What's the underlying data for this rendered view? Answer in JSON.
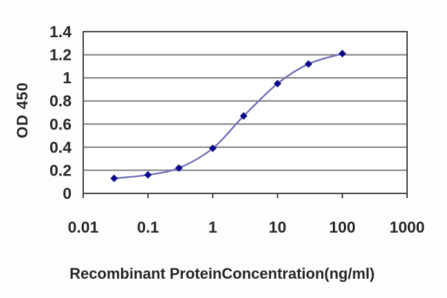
{
  "chart_data": {
    "type": "line",
    "title": "",
    "xlabel": "Recombinant ProteinConcentration(ng/ml)",
    "ylabel": "OD 450",
    "x_scale": "log",
    "xlim": [
      0.01,
      1000
    ],
    "ylim": [
      0,
      1.4
    ],
    "x_ticks": [
      0.01,
      0.1,
      1,
      10,
      100,
      1000
    ],
    "x_tick_labels": [
      "0.01",
      "0.1",
      "1",
      "10",
      "100",
      "1000"
    ],
    "y_ticks": [
      0,
      0.2,
      0.4,
      0.6,
      0.8,
      1,
      1.2,
      1.4
    ],
    "y_tick_labels": [
      "0",
      "0.2",
      "0.4",
      "0.6",
      "0.8",
      "1",
      "1.2",
      "1.4"
    ],
    "grid": "horizontal",
    "legend": "none",
    "series": [
      {
        "name": "OD 450",
        "marker": "diamond",
        "x": [
          0.03,
          0.1,
          0.3,
          1,
          3,
          10,
          30,
          100
        ],
        "y": [
          0.13,
          0.16,
          0.22,
          0.39,
          0.67,
          0.95,
          1.12,
          1.21
        ]
      }
    ],
    "colors": {
      "line": "#6e6eb8",
      "marker": "#0a0a8c",
      "grid": "#7d7d7d",
      "frame": "#404040",
      "text": "#262626",
      "background": "#fdfdfb"
    }
  }
}
